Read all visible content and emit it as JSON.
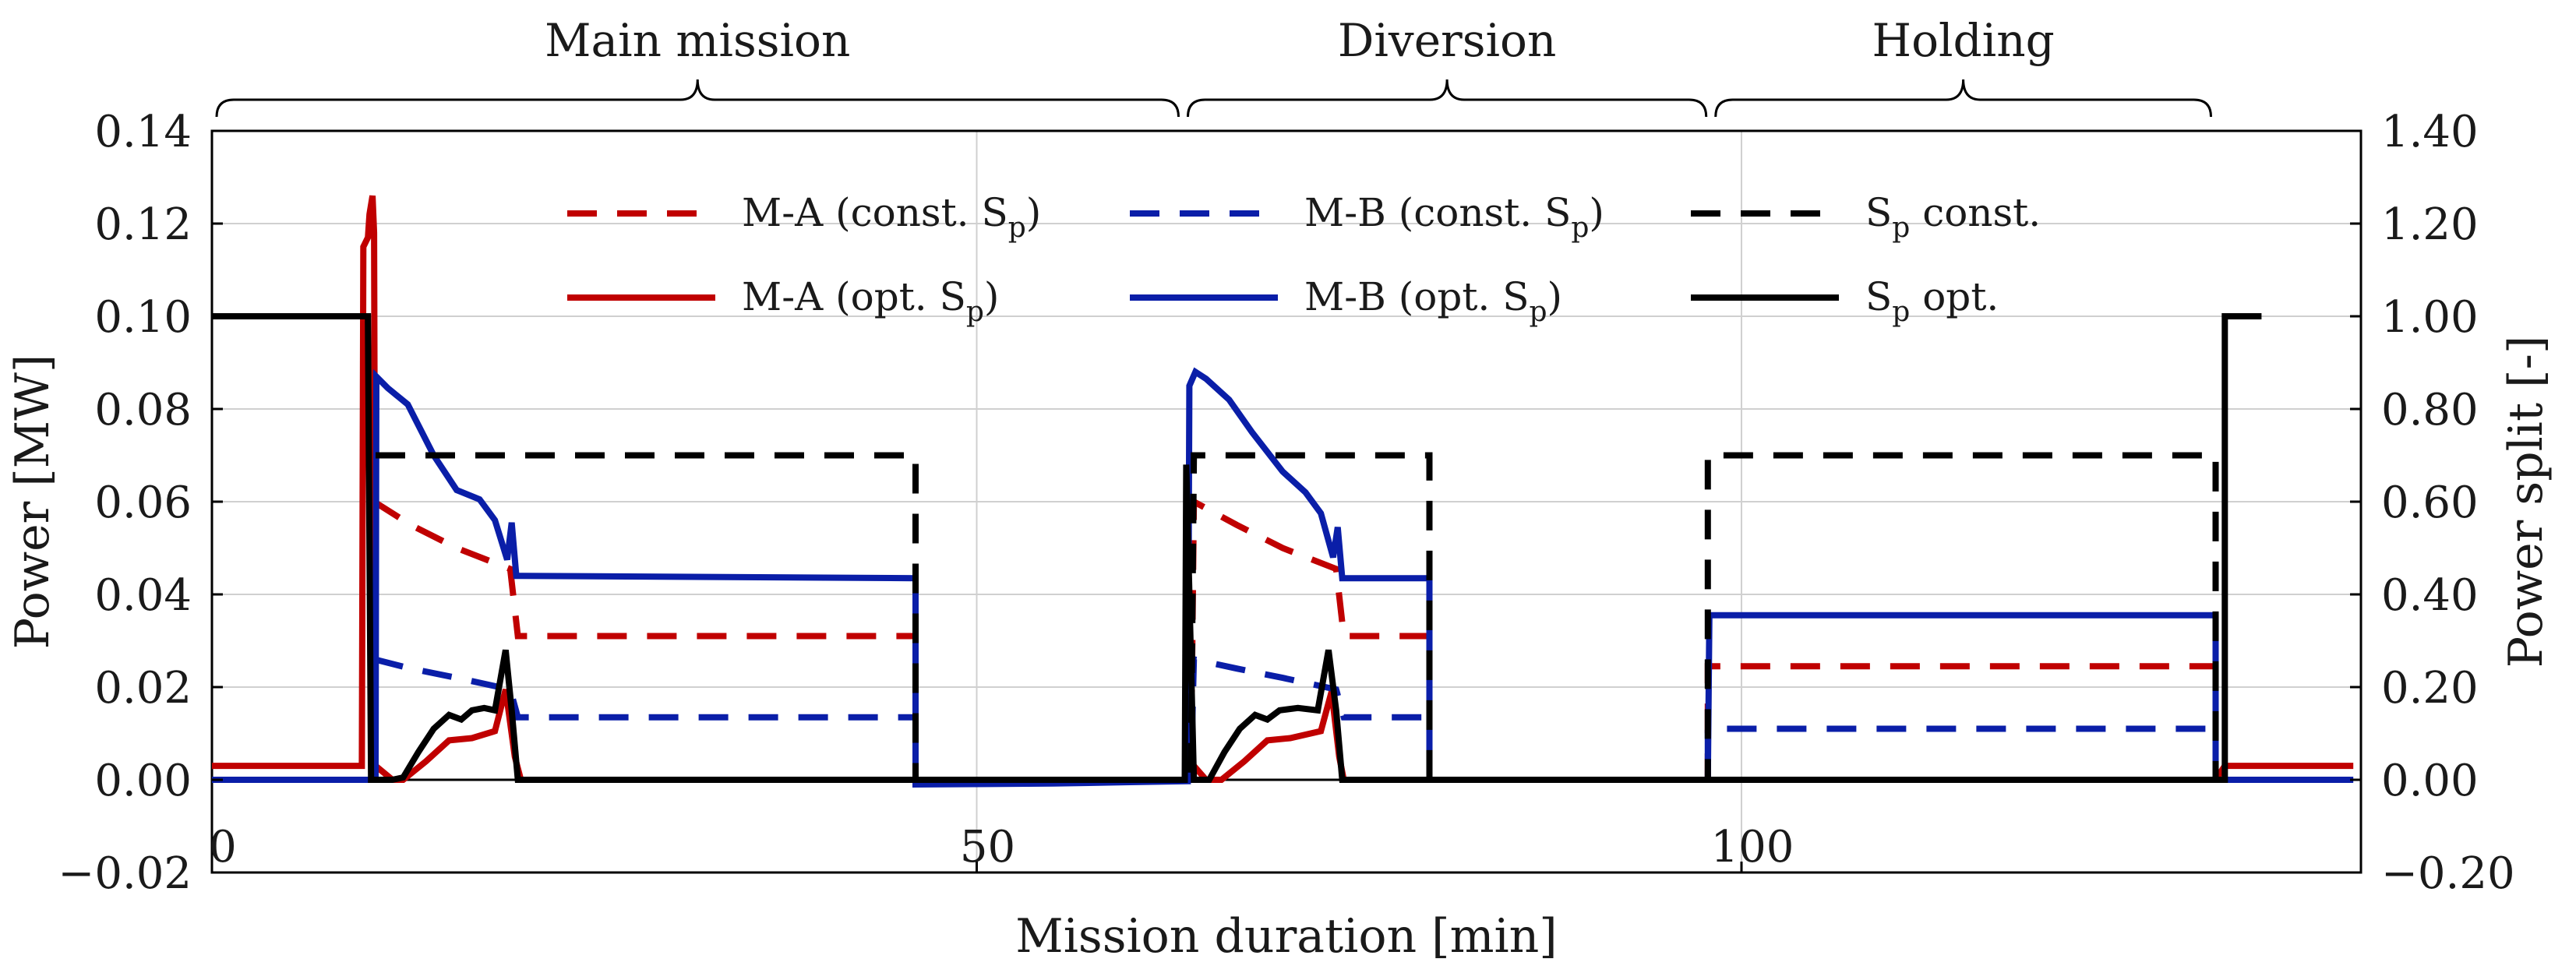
{
  "chart_data": {
    "type": "line",
    "x_axis": {
      "label": "Mission duration [min]",
      "range": [
        0,
        140.5
      ],
      "ticks": [
        0,
        50,
        100
      ],
      "tick_labels": [
        "0",
        "50",
        "100"
      ]
    },
    "y_axis_left": {
      "label": "Power [MW]",
      "range": [
        -0.02,
        0.14
      ],
      "ticks": [
        -0.02,
        0,
        0.02,
        0.04,
        0.06,
        0.08,
        0.1,
        0.12,
        0.14
      ],
      "tick_labels": [
        "−0.02",
        "0.00",
        "0.02",
        "0.04",
        "0.06",
        "0.08",
        "0.10",
        "0.12",
        "0.14"
      ]
    },
    "y_axis_right": {
      "label": "Power split [-]",
      "range": [
        -0.2,
        1.4
      ],
      "ticks": [
        -0.2,
        0,
        0.2,
        0.4,
        0.6,
        0.8,
        1.0,
        1.2,
        1.4
      ],
      "tick_labels": [
        "−0.20",
        "0.00",
        "0.20",
        "0.40",
        "0.60",
        "0.80",
        "1.00",
        "1.20",
        "1.40"
      ]
    },
    "grid": true,
    "legend_position": "top-center",
    "phases": [
      {
        "label": "Main mission",
        "start": 0,
        "end": 63.5
      },
      {
        "label": "Diversion",
        "start": 63.5,
        "end": 98
      },
      {
        "label": "Holding",
        "start": 98,
        "end": 131
      }
    ],
    "colors": {
      "red": "#c00000",
      "blue": "#0a1ea8",
      "black": "#000000",
      "grid": "#d0d0d0"
    },
    "series": [
      {
        "name": "M-A (const. Sp)",
        "legend_main": "M-A (const. S",
        "legend_sub": "p",
        "legend_tail": ")",
        "axis": "left",
        "color": "red",
        "dash": true,
        "points": [
          [
            10.6,
            0.06
          ],
          [
            13,
            0.055
          ],
          [
            16,
            0.05
          ],
          [
            19.5,
            0.0455
          ],
          [
            20,
            0.031
          ],
          [
            30,
            0.031
          ],
          [
            40,
            0.031
          ],
          [
            46,
            0.031
          ],
          [
            46,
            0
          ],
          [
            64,
            0
          ],
          [
            64.2,
            0.06
          ],
          [
            67,
            0.055
          ],
          [
            70,
            0.05
          ],
          [
            73.5,
            0.0455
          ],
          [
            74,
            0.031
          ],
          [
            79.6,
            0.031
          ],
          [
            79.6,
            0
          ],
          [
            97.8,
            0
          ],
          [
            97.8,
            0.0245
          ],
          [
            131,
            0.0245
          ]
        ]
      },
      {
        "name": "M-A (opt. Sp)",
        "legend_main": "M-A (opt. S",
        "legend_sub": "p",
        "legend_tail": ")",
        "axis": "left",
        "color": "red",
        "dash": false,
        "points": [
          [
            0,
            0.003
          ],
          [
            9.8,
            0.003
          ],
          [
            9.9,
            0.115
          ],
          [
            10.2,
            0.117
          ],
          [
            10.3,
            0.122
          ],
          [
            10.5,
            0.126
          ],
          [
            10.6,
            0.118
          ],
          [
            10.7,
            0.003
          ],
          [
            11.8,
            0
          ],
          [
            12.5,
            0
          ],
          [
            14,
            0.004
          ],
          [
            15.5,
            0.0085
          ],
          [
            17,
            0.009
          ],
          [
            18.5,
            0.0105
          ],
          [
            19.2,
            0.0195
          ],
          [
            19.8,
            0.005
          ],
          [
            20.2,
            0
          ],
          [
            46,
            0
          ],
          [
            64,
            0
          ],
          [
            64.2,
            0.003
          ],
          [
            65,
            0
          ],
          [
            66,
            0
          ],
          [
            67.5,
            0.004
          ],
          [
            69,
            0.0085
          ],
          [
            70.5,
            0.009
          ],
          [
            72.5,
            0.0105
          ],
          [
            73.2,
            0.019
          ],
          [
            73.7,
            0.005
          ],
          [
            74,
            0
          ],
          [
            131,
            0
          ],
          [
            131.6,
            0.003
          ],
          [
            140,
            0.003
          ]
        ]
      },
      {
        "name": "M-B (const. Sp)",
        "legend_main": "M-B (const. S",
        "legend_sub": "p",
        "legend_tail": ")",
        "axis": "left",
        "color": "blue",
        "dash": true,
        "points": [
          [
            10.6,
            0.026
          ],
          [
            13,
            0.024
          ],
          [
            16,
            0.022
          ],
          [
            19.5,
            0.0195
          ],
          [
            20,
            0.0135
          ],
          [
            30,
            0.0135
          ],
          [
            40,
            0.0135
          ],
          [
            46,
            0.0135
          ],
          [
            46,
            0
          ],
          [
            64,
            0
          ],
          [
            64.2,
            0.026
          ],
          [
            67,
            0.024
          ],
          [
            70,
            0.022
          ],
          [
            73.5,
            0.0195
          ],
          [
            74,
            0.0135
          ],
          [
            79.6,
            0.0135
          ],
          [
            79.6,
            0
          ],
          [
            97.8,
            0
          ],
          [
            97.8,
            0.011
          ],
          [
            131,
            0.011
          ]
        ]
      },
      {
        "name": "M-B (opt. Sp)",
        "legend_main": "M-B (opt. S",
        "legend_sub": "p",
        "legend_tail": ")",
        "axis": "left",
        "color": "blue",
        "dash": false,
        "points": [
          [
            0,
            0
          ],
          [
            10.7,
            0
          ],
          [
            10.75,
            0.087
          ],
          [
            11.5,
            0.0845
          ],
          [
            12.8,
            0.081
          ],
          [
            14.5,
            0.07
          ],
          [
            16,
            0.0625
          ],
          [
            17.5,
            0.0605
          ],
          [
            18.5,
            0.056
          ],
          [
            19.3,
            0.0475
          ],
          [
            19.6,
            0.0555
          ],
          [
            19.9,
            0.044
          ],
          [
            20.3,
            0.044
          ],
          [
            46,
            0.0435
          ],
          [
            46,
            -0.001
          ],
          [
            55,
            -0.0008
          ],
          [
            60,
            -0.0005
          ],
          [
            63.8,
            -0.0003
          ],
          [
            63.9,
            0.085
          ],
          [
            64.3,
            0.088
          ],
          [
            65,
            0.0865
          ],
          [
            66.5,
            0.082
          ],
          [
            68,
            0.075
          ],
          [
            70,
            0.0665
          ],
          [
            71.5,
            0.062
          ],
          [
            72.5,
            0.0575
          ],
          [
            73.3,
            0.048
          ],
          [
            73.6,
            0.0545
          ],
          [
            73.9,
            0.0435
          ],
          [
            74.5,
            0.0435
          ],
          [
            79.6,
            0.0435
          ],
          [
            79.6,
            0
          ],
          [
            97.8,
            0
          ],
          [
            97.9,
            0.0355
          ],
          [
            131,
            0.0355
          ],
          [
            131,
            0
          ],
          [
            140,
            0
          ]
        ]
      },
      {
        "name": "Sp const.",
        "legend_main": "S",
        "legend_sub": "p",
        "legend_tail": " const.",
        "axis": "right",
        "color": "black",
        "dash": true,
        "points": [
          [
            10.7,
            0.7
          ],
          [
            46,
            0.7
          ],
          [
            46,
            0
          ],
          [
            64,
            0
          ],
          [
            64.2,
            0.7
          ],
          [
            79.6,
            0.7
          ],
          [
            79.6,
            0
          ],
          [
            97.8,
            0
          ],
          [
            97.8,
            0.7
          ],
          [
            131,
            0.7
          ],
          [
            131,
            0
          ]
        ]
      },
      {
        "name": "Sp opt.",
        "legend_main": "S",
        "legend_sub": "p",
        "legend_tail": " opt.",
        "axis": "right",
        "color": "black",
        "dash": false,
        "points": [
          [
            0,
            1
          ],
          [
            10.2,
            1
          ],
          [
            10.4,
            0
          ],
          [
            10.9,
            0
          ],
          [
            11.8,
            0
          ],
          [
            12.5,
            0.005
          ],
          [
            13.5,
            0.06
          ],
          [
            14.5,
            0.11
          ],
          [
            15.5,
            0.14
          ],
          [
            16.3,
            0.13
          ],
          [
            17,
            0.15
          ],
          [
            17.8,
            0.155
          ],
          [
            18.5,
            0.15
          ],
          [
            19.2,
            0.28
          ],
          [
            19.6,
            0.15
          ],
          [
            20,
            0
          ],
          [
            46,
            0
          ],
          [
            63.6,
            0
          ],
          [
            63.7,
            0.68
          ],
          [
            64.2,
            0
          ],
          [
            65.2,
            0
          ],
          [
            66.2,
            0.06
          ],
          [
            67.2,
            0.11
          ],
          [
            68.2,
            0.14
          ],
          [
            69,
            0.13
          ],
          [
            69.8,
            0.15
          ],
          [
            71,
            0.155
          ],
          [
            72.3,
            0.15
          ],
          [
            73,
            0.28
          ],
          [
            73.5,
            0.15
          ],
          [
            73.9,
            0
          ],
          [
            131,
            0
          ],
          [
            131.6,
            0
          ],
          [
            131.6,
            1
          ],
          [
            134,
            1
          ]
        ]
      }
    ]
  }
}
